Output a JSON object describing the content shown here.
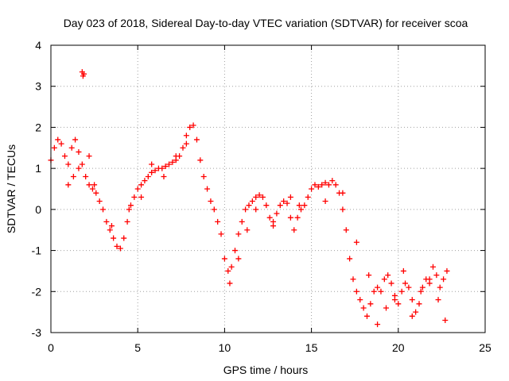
{
  "chart_data": {
    "type": "scatter",
    "title": "Day 023 of 2018, Sidereal Day-to-day VTEC variation (SDTVAR) for receiver scoa",
    "xlabel": "GPS time / hours",
    "ylabel": "SDTVAR / TECUs",
    "xlim": [
      0,
      25
    ],
    "ylim": [
      -3,
      4
    ],
    "xticks": [
      0,
      5,
      10,
      15,
      20,
      25
    ],
    "xtick_labels": [
      "0",
      "5",
      "10",
      "15",
      "20",
      "25"
    ],
    "yticks": [
      -3,
      -2,
      -1,
      0,
      1,
      2,
      3,
      4
    ],
    "ytick_labels": [
      "-3",
      "-2",
      "-1",
      "0",
      "1",
      "2",
      "3",
      "4"
    ],
    "grid": true,
    "marker": "+",
    "series": [
      {
        "name": "SDTVAR",
        "color": "#ff0000",
        "x": [
          0.0,
          0.2,
          0.4,
          0.6,
          0.8,
          1.0,
          1.2,
          1.4,
          1.6,
          1.8,
          2.0,
          2.2,
          2.4,
          2.6,
          2.8,
          3.0,
          3.2,
          3.4,
          3.6,
          3.8,
          4.0,
          4.2,
          4.4,
          4.6,
          4.8,
          5.0,
          5.2,
          5.4,
          5.6,
          5.8,
          6.0,
          6.2,
          6.4,
          6.6,
          6.8,
          7.0,
          7.2,
          7.4,
          7.6,
          7.8,
          8.0,
          8.2,
          8.4,
          8.6,
          8.8,
          9.0,
          9.2,
          9.4,
          9.6,
          9.8,
          10.0,
          10.2,
          10.4,
          10.6,
          10.8,
          11.0,
          11.2,
          11.4,
          11.6,
          11.8,
          12.0,
          12.2,
          12.4,
          12.6,
          12.8,
          13.0,
          13.2,
          13.4,
          13.6,
          13.8,
          14.0,
          14.2,
          14.4,
          14.6,
          14.8,
          15.0,
          15.2,
          15.4,
          15.6,
          15.8,
          16.0,
          16.2,
          16.4,
          16.6,
          16.8,
          17.0,
          17.2,
          17.4,
          17.6,
          17.8,
          18.0,
          18.2,
          18.4,
          18.6,
          18.8,
          19.0,
          19.2,
          19.4,
          19.6,
          19.8,
          20.0,
          20.2,
          20.4,
          20.6,
          20.8,
          21.0,
          21.2,
          21.4,
          21.6,
          21.8,
          22.0,
          22.2,
          22.4,
          22.6,
          22.8,
          1.8,
          1.85,
          1.9,
          1.0,
          1.3,
          1.6,
          2.2,
          2.5,
          3.5,
          4.5,
          5.2,
          5.8,
          6.5,
          7.2,
          7.8,
          10.3,
          10.8,
          11.3,
          11.8,
          12.8,
          13.8,
          14.3,
          15.8,
          16.8,
          17.6,
          18.3,
          18.8,
          19.3,
          19.8,
          20.3,
          20.8,
          21.3,
          21.8,
          22.3,
          22.7
        ],
        "y": [
          1.2,
          1.5,
          1.7,
          1.6,
          1.3,
          1.1,
          1.5,
          1.7,
          1.4,
          1.1,
          0.8,
          0.6,
          0.5,
          0.4,
          0.2,
          0.0,
          -0.3,
          -0.5,
          -0.7,
          -0.9,
          -0.95,
          -0.7,
          -0.3,
          0.1,
          0.3,
          0.5,
          0.6,
          0.7,
          0.8,
          0.9,
          0.95,
          1.0,
          1.0,
          1.05,
          1.1,
          1.15,
          1.2,
          1.3,
          1.5,
          1.8,
          2.0,
          2.05,
          1.7,
          1.2,
          0.8,
          0.5,
          0.2,
          0.0,
          -0.3,
          -0.6,
          -1.2,
          -1.5,
          -1.4,
          -1.0,
          -0.6,
          -0.3,
          0.0,
          0.1,
          0.2,
          0.3,
          0.35,
          0.3,
          0.1,
          -0.2,
          -0.3,
          -0.1,
          0.1,
          0.2,
          0.15,
          0.3,
          -0.5,
          -0.2,
          0.0,
          0.1,
          0.3,
          0.5,
          0.6,
          0.55,
          0.6,
          0.65,
          0.6,
          0.7,
          0.6,
          0.4,
          0.0,
          -0.5,
          -1.2,
          -1.7,
          -2.0,
          -2.2,
          -2.4,
          -2.6,
          -2.3,
          -2.0,
          -1.9,
          -2.0,
          -1.7,
          -1.6,
          -1.8,
          -2.1,
          -2.3,
          -2.0,
          -1.8,
          -1.9,
          -2.2,
          -2.5,
          -2.3,
          -1.9,
          -1.7,
          -1.8,
          -1.4,
          -1.6,
          -1.9,
          -1.7,
          -1.5,
          3.35,
          3.25,
          3.3,
          0.6,
          0.8,
          1.0,
          1.3,
          0.6,
          -0.4,
          0.0,
          0.3,
          1.1,
          0.8,
          1.3,
          1.6,
          -1.8,
          -1.2,
          -0.5,
          0.0,
          -0.4,
          -0.2,
          0.1,
          0.2,
          0.4,
          -0.8,
          -1.6,
          -2.8,
          -2.4,
          -2.2,
          -1.5,
          -2.6,
          -2.0,
          -1.7,
          -2.2,
          -2.7
        ]
      }
    ]
  }
}
